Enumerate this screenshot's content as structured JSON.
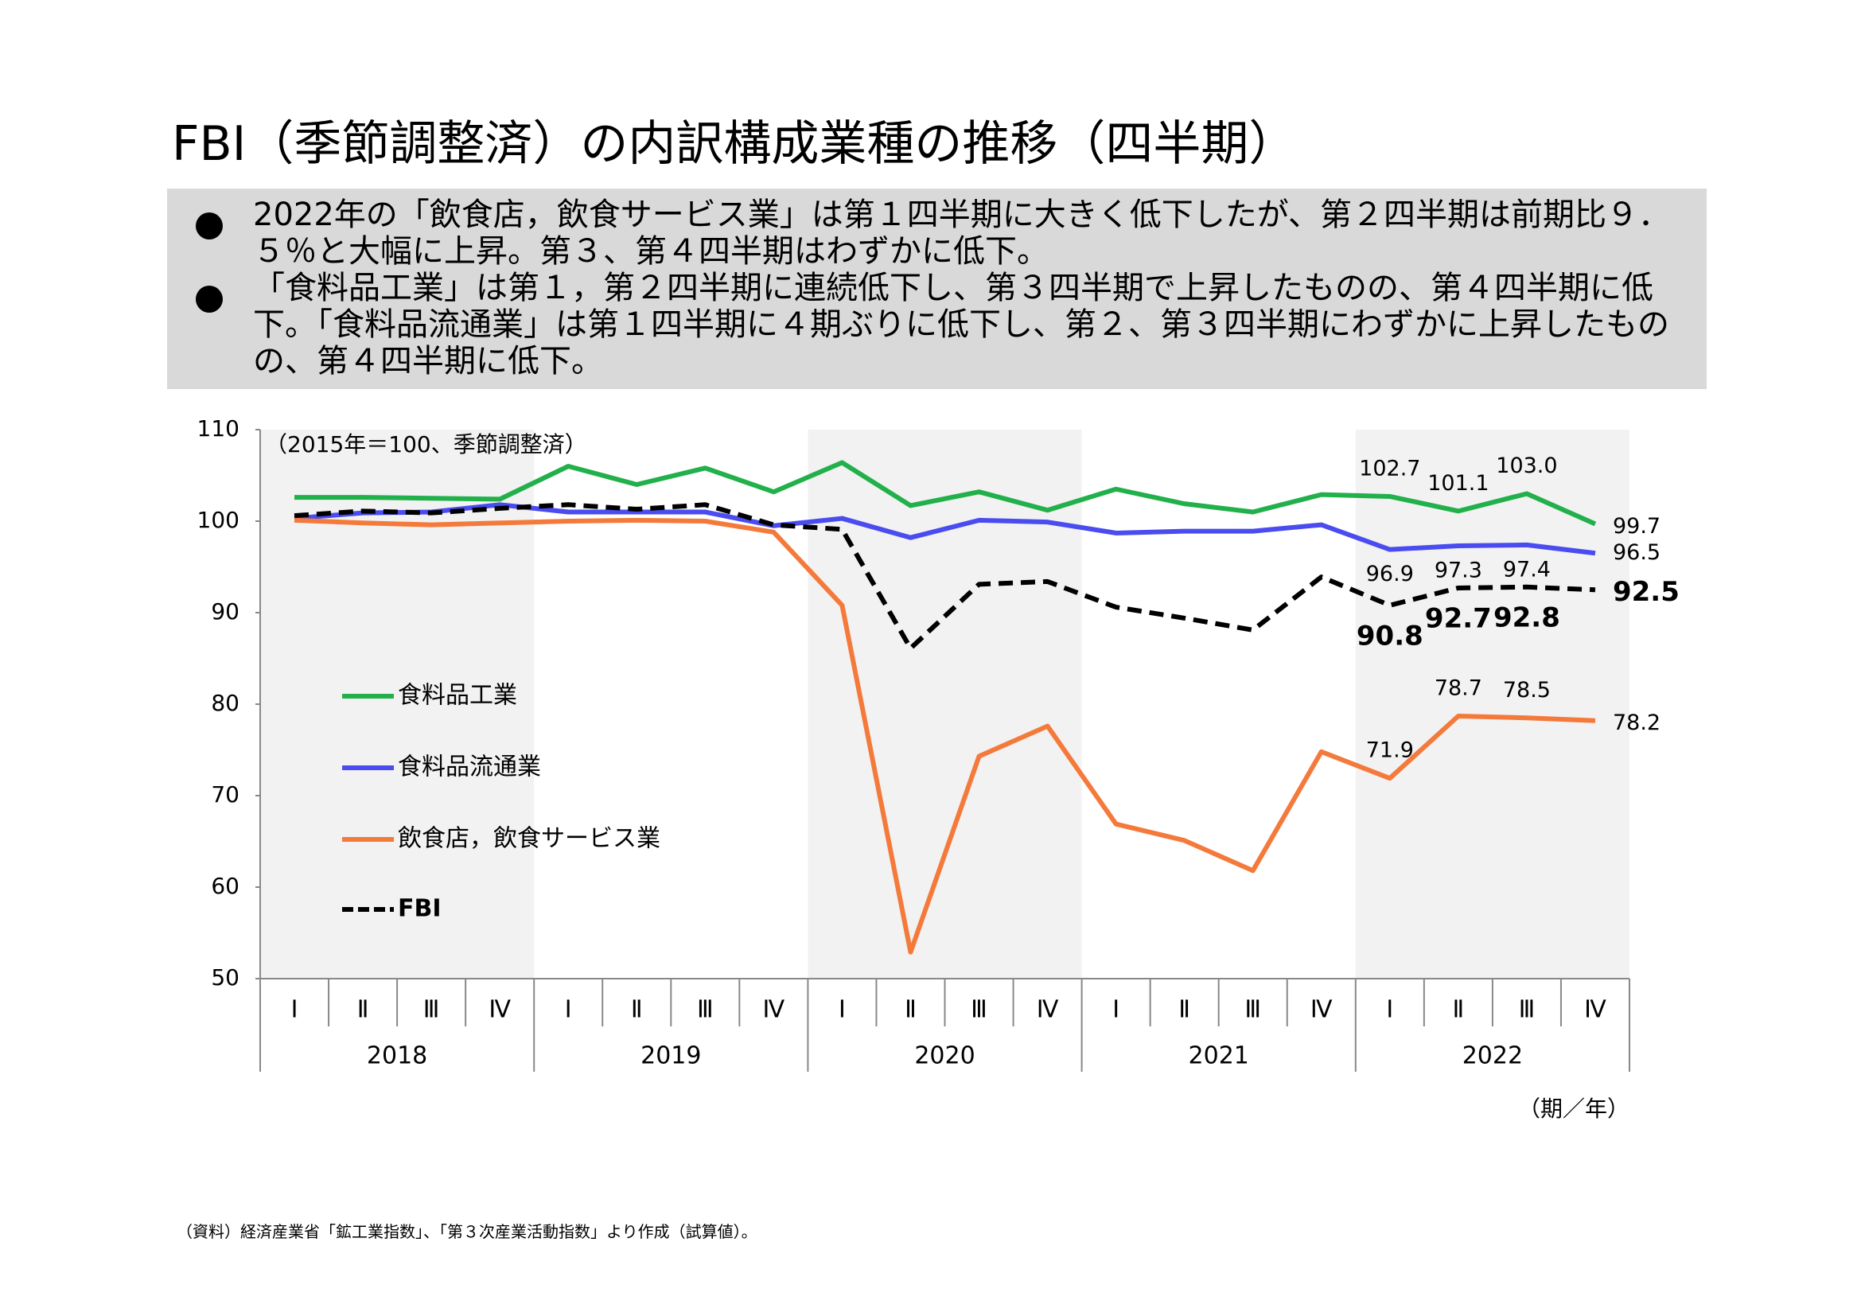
{
  "title": "FBI（季節調整済）の内訳構成業種の推移（四半期）",
  "bullets": [
    "2022年の「飲食店，飲食サービス業」は第１四半期に大きく低下したが、第２四半期は前期比９．５％と大幅に上昇。第３、第４四半期はわずかに低下。",
    "「食料品工業」は第１，第２四半期に連続低下し、第３四半期で上昇したものの、第４四半期に低下。「食料品流通業」は第１四半期に４期ぶりに低下し、第２、第３四半期にわずかに上昇したものの、第４四半期に低下。"
  ],
  "source": "（資料）経済産業省「鉱工業指数」、「第３次産業活動指数」より作成（試算値）。",
  "chart_data": {
    "type": "line",
    "unit_note": "（2015年＝100、季節調整済）",
    "x_label": "（期／年）",
    "categories": [
      "Ⅰ",
      "Ⅱ",
      "Ⅲ",
      "Ⅳ",
      "Ⅰ",
      "Ⅱ",
      "Ⅲ",
      "Ⅳ",
      "Ⅰ",
      "Ⅱ",
      "Ⅲ",
      "Ⅳ",
      "Ⅰ",
      "Ⅱ",
      "Ⅲ",
      "Ⅳ",
      "Ⅰ",
      "Ⅱ",
      "Ⅲ",
      "Ⅳ"
    ],
    "years": [
      "2018",
      "2019",
      "2020",
      "2021",
      "2022"
    ],
    "ylim": [
      50,
      110
    ],
    "yticks": [
      50,
      60,
      70,
      80,
      90,
      100,
      110
    ],
    "series": [
      {
        "name": "食料品工業",
        "color": "#22b04b",
        "dash": false,
        "values": [
          102.6,
          102.6,
          102.5,
          102.4,
          106.0,
          104.0,
          105.8,
          103.2,
          106.4,
          101.7,
          103.2,
          101.2,
          103.5,
          101.9,
          101.0,
          102.9,
          102.7,
          101.1,
          103.0,
          99.7
        ],
        "value_labels": [
          null,
          null,
          null,
          null,
          null,
          null,
          null,
          null,
          null,
          null,
          null,
          null,
          null,
          null,
          null,
          null,
          "102.7",
          "101.1",
          "103.0",
          "99.7"
        ]
      },
      {
        "name": "食料品流通業",
        "color": "#4a4cf0",
        "dash": false,
        "values": [
          100.3,
          100.9,
          101.0,
          101.8,
          101.0,
          101.0,
          101.0,
          99.5,
          100.3,
          98.2,
          100.1,
          99.9,
          98.7,
          98.9,
          98.9,
          99.6,
          96.9,
          97.3,
          97.4,
          96.5
        ],
        "value_labels": [
          null,
          null,
          null,
          null,
          null,
          null,
          null,
          null,
          null,
          null,
          null,
          null,
          null,
          null,
          null,
          null,
          "96.9",
          "97.3",
          "97.4",
          "96.5"
        ]
      },
      {
        "name": "飲食店，飲食サービス業",
        "color": "#f47a3c",
        "dash": false,
        "values": [
          100.1,
          99.8,
          99.6,
          99.8,
          100.0,
          100.1,
          100.0,
          98.8,
          90.8,
          52.9,
          74.3,
          77.6,
          66.9,
          65.1,
          61.8,
          74.8,
          71.9,
          78.7,
          78.5,
          78.2
        ],
        "value_labels": [
          null,
          null,
          null,
          null,
          null,
          null,
          null,
          null,
          null,
          null,
          null,
          null,
          null,
          null,
          null,
          null,
          "71.9",
          "78.7",
          "78.5",
          "78.2"
        ]
      },
      {
        "name": "FBI",
        "color": "#000000",
        "dash": true,
        "values": [
          100.6,
          101.1,
          100.9,
          101.4,
          101.8,
          101.3,
          101.8,
          99.6,
          99.1,
          86.1,
          93.1,
          93.4,
          90.6,
          89.4,
          88.1,
          93.9,
          90.8,
          92.7,
          92.8,
          92.5
        ],
        "value_labels": [
          null,
          null,
          null,
          null,
          null,
          null,
          null,
          null,
          null,
          null,
          null,
          null,
          null,
          null,
          null,
          null,
          "90.8",
          "92.7",
          "92.8",
          "92.5"
        ]
      }
    ]
  }
}
